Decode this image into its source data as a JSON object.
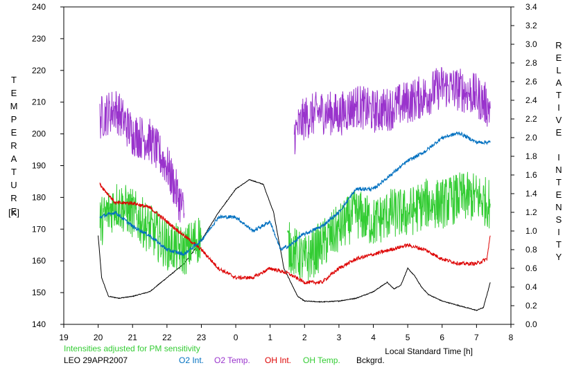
{
  "chart_data": {
    "type": "line",
    "xlabel": "Local Standard Time [h]",
    "ylabel_left": "TEMPERATURE",
    "ylabel_left_unit": "[K]",
    "ylabel_right": "RELATIVE INTENSITY",
    "xlim": [
      19,
      8
    ],
    "x_ticks": [
      "19",
      "20",
      "21",
      "22",
      "23",
      "0",
      "1",
      "2",
      "3",
      "4",
      "5",
      "6",
      "7",
      "8"
    ],
    "ylim_left": [
      140,
      240
    ],
    "y_ticks_left": [
      "140",
      "150",
      "160",
      "170",
      "180",
      "190",
      "200",
      "210",
      "220",
      "230",
      "240"
    ],
    "ylim_right": [
      0.0,
      3.4
    ],
    "y_ticks_right": [
      "0.0",
      "0.2",
      "0.4",
      "0.6",
      "0.8",
      "1.0",
      "1.2",
      "1.4",
      "1.6",
      "1.8",
      "2.0",
      "2.2",
      "2.4",
      "2.6",
      "2.8",
      "3.0",
      "3.2",
      "3.4"
    ],
    "grid": false,
    "note": "Intensities adjusted for PM sensitivity",
    "station": "LEO 29APR2007",
    "series": [
      {
        "name": "O2 Int.",
        "axis": "right",
        "color": "#0070c0",
        "noise": 0.02,
        "x": [
          20.05,
          20.5,
          21.0,
          21.5,
          22.0,
          22.5,
          23.0,
          23.5,
          24.0,
          24.5,
          25.0,
          25.3,
          25.6,
          25.9,
          26.5,
          27.0,
          27.5,
          28.0,
          28.5,
          29.0,
          29.5,
          30.0,
          30.5,
          31.0,
          31.4
        ],
        "values": [
          1.15,
          1.2,
          1.05,
          0.95,
          0.8,
          0.75,
          0.9,
          1.15,
          1.15,
          1.0,
          1.1,
          0.8,
          0.85,
          0.95,
          1.05,
          1.2,
          1.45,
          1.45,
          1.6,
          1.75,
          1.85,
          2.0,
          2.05,
          1.95,
          1.95
        ]
      },
      {
        "name": "O2 Temp.",
        "axis": "left",
        "color": "#9933cc",
        "noise": 7,
        "x": [
          20.05,
          20.5,
          21.0,
          21.5,
          22.0,
          22.5,
          25.7,
          26.0,
          26.5,
          27.0,
          27.5,
          28.0,
          28.5,
          29.0,
          29.5,
          30.0,
          30.5,
          31.0,
          31.4
        ],
        "values": [
          205,
          208,
          200,
          198,
          190,
          175,
          200,
          205,
          207,
          206,
          209,
          207,
          208,
          210,
          212,
          215,
          214,
          212,
          208
        ]
      },
      {
        "name": "OH Int.",
        "axis": "right",
        "color": "#dd0000",
        "noise": 0.02,
        "x": [
          20.05,
          20.5,
          21.0,
          21.5,
          22.0,
          22.5,
          23.0,
          23.5,
          24.0,
          24.5,
          25.0,
          25.5,
          26.0,
          26.5,
          27.0,
          27.5,
          28.0,
          28.5,
          29.0,
          29.5,
          30.0,
          30.5,
          31.0,
          31.3,
          31.4
        ],
        "values": [
          1.5,
          1.3,
          1.3,
          1.25,
          1.1,
          0.95,
          0.8,
          0.6,
          0.5,
          0.5,
          0.6,
          0.55,
          0.45,
          0.45,
          0.6,
          0.7,
          0.75,
          0.8,
          0.85,
          0.8,
          0.7,
          0.65,
          0.65,
          0.7,
          0.95
        ]
      },
      {
        "name": "OH Temp.",
        "axis": "left",
        "color": "#33cc33",
        "noise": 8,
        "x": [
          20.05,
          20.5,
          21.0,
          21.5,
          22.0,
          22.5,
          23.0,
          25.5,
          26.0,
          26.5,
          27.0,
          27.5,
          28.0,
          28.5,
          29.0,
          29.5,
          30.0,
          30.5,
          31.0,
          31.4
        ],
        "values": [
          172,
          178,
          175,
          170,
          165,
          163,
          168,
          165,
          160,
          165,
          170,
          175,
          172,
          175,
          175,
          178,
          178,
          180,
          180,
          178
        ]
      },
      {
        "name": "Bckgrd.",
        "axis": "right",
        "color": "#000000",
        "noise": 0.004,
        "x": [
          20.0,
          20.1,
          20.3,
          20.6,
          21.0,
          21.5,
          22.0,
          22.5,
          23.0,
          23.5,
          24.0,
          24.4,
          24.8,
          25.1,
          25.4,
          25.8,
          26.0,
          26.5,
          27.0,
          27.5,
          28.0,
          28.4,
          28.6,
          28.8,
          29.0,
          29.2,
          29.4,
          29.6,
          30.0,
          30.5,
          31.0,
          31.2,
          31.4
        ],
        "values": [
          0.95,
          0.5,
          0.3,
          0.28,
          0.3,
          0.35,
          0.5,
          0.65,
          0.9,
          1.2,
          1.45,
          1.55,
          1.5,
          1.2,
          0.6,
          0.3,
          0.25,
          0.24,
          0.25,
          0.28,
          0.35,
          0.45,
          0.38,
          0.42,
          0.6,
          0.52,
          0.4,
          0.32,
          0.25,
          0.2,
          0.15,
          0.18,
          0.45
        ]
      }
    ]
  }
}
